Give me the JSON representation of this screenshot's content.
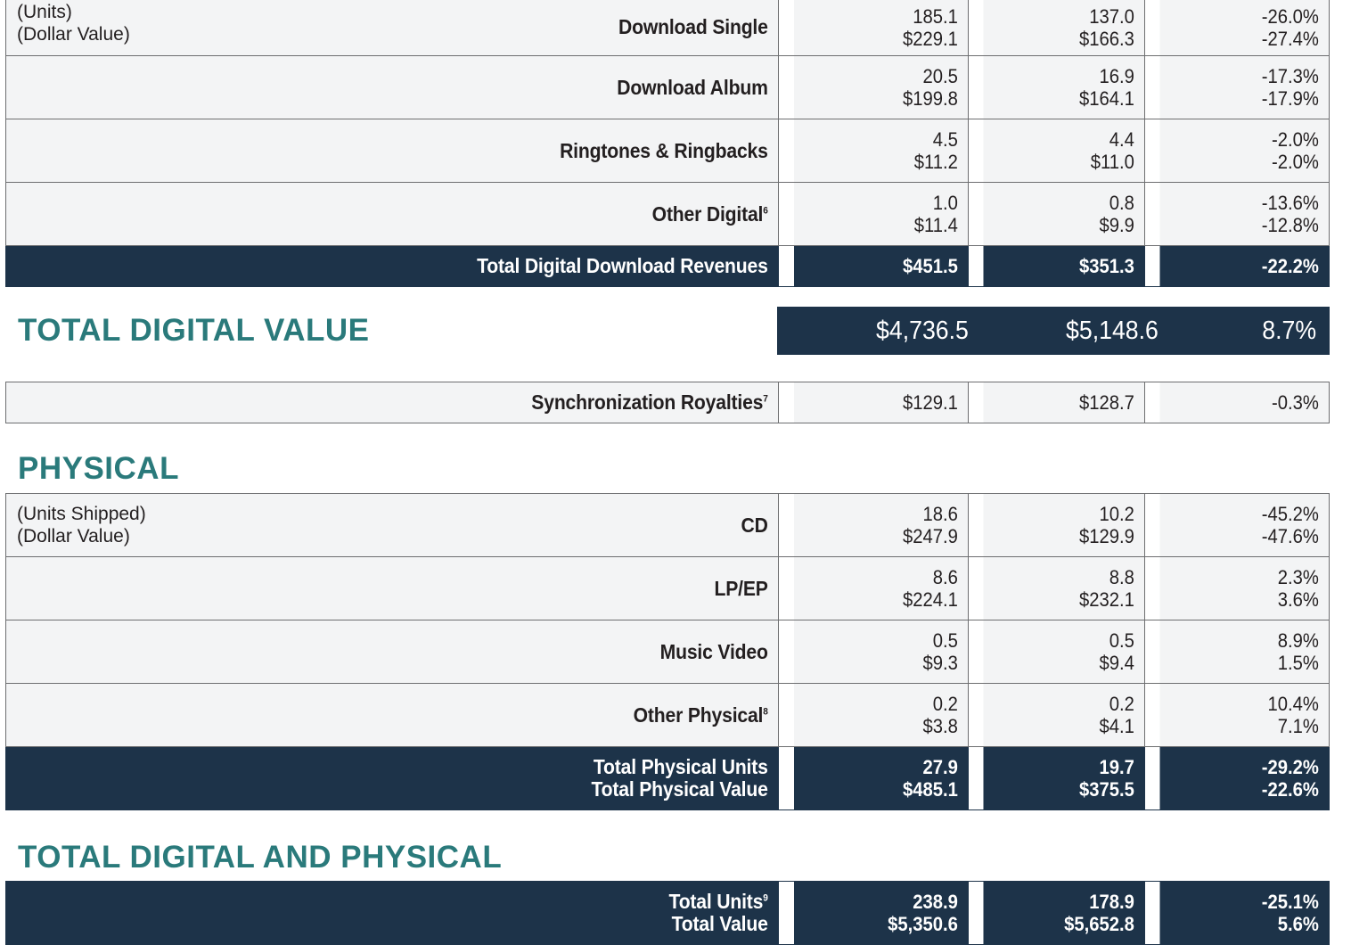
{
  "digital_downloads": {
    "sub_label": [
      "(Units)",
      "(Dollar Value)"
    ],
    "rows": [
      {
        "name": "Download Single",
        "sup": "",
        "y1": [
          "185.1",
          "$229.1"
        ],
        "y2": [
          "137.0",
          "$166.3"
        ],
        "chg": [
          "-26.0%",
          "-27.4%"
        ]
      },
      {
        "name": "Download Album",
        "sup": "",
        "y1": [
          "20.5",
          "$199.8"
        ],
        "y2": [
          "16.9",
          "$164.1"
        ],
        "chg": [
          "-17.3%",
          "-17.9%"
        ]
      },
      {
        "name": "Ringtones & Ringbacks",
        "sup": "",
        "y1": [
          "4.5",
          "$11.2"
        ],
        "y2": [
          "4.4",
          "$11.0"
        ],
        "chg": [
          "-2.0%",
          "-2.0%"
        ]
      },
      {
        "name": "Other Digital",
        "sup": "6",
        "y1": [
          "1.0",
          "$11.4"
        ],
        "y2": [
          "0.8",
          "$9.9"
        ],
        "chg": [
          "-13.6%",
          "-12.8%"
        ]
      }
    ],
    "total": {
      "name": "Total Digital Download Revenues",
      "y1": "$451.5",
      "y2": "$351.3",
      "chg": "-22.2%"
    }
  },
  "total_digital_value": {
    "title": "TOTAL DIGITAL VALUE",
    "y1": "$4,736.5",
    "y2": "$5,148.6",
    "chg": "8.7%"
  },
  "sync": {
    "name": "Synchronization Royalties",
    "sup": "7",
    "y1": "$129.1",
    "y2": "$128.7",
    "chg": "-0.3%"
  },
  "physical": {
    "title": "PHYSICAL",
    "sub_label": [
      "(Units Shipped)",
      "(Dollar Value)"
    ],
    "rows": [
      {
        "name": "CD",
        "sup": "",
        "y1": [
          "18.6",
          "$247.9"
        ],
        "y2": [
          "10.2",
          "$129.9"
        ],
        "chg": [
          "-45.2%",
          "-47.6%"
        ]
      },
      {
        "name": "LP/EP",
        "sup": "",
        "y1": [
          "8.6",
          "$224.1"
        ],
        "y2": [
          "8.8",
          "$232.1"
        ],
        "chg": [
          "2.3%",
          "3.6%"
        ]
      },
      {
        "name": "Music Video",
        "sup": "",
        "y1": [
          "0.5",
          "$9.3"
        ],
        "y2": [
          "0.5",
          "$9.4"
        ],
        "chg": [
          "8.9%",
          "1.5%"
        ]
      },
      {
        "name": "Other Physical",
        "sup": "8",
        "y1": [
          "0.2",
          "$3.8"
        ],
        "y2": [
          "0.2",
          "$4.1"
        ],
        "chg": [
          "10.4%",
          "7.1%"
        ]
      }
    ],
    "total": {
      "name": [
        "Total Physical Units",
        "Total Physical Value"
      ],
      "y1": [
        "27.9",
        "$485.1"
      ],
      "y2": [
        "19.7",
        "$375.5"
      ],
      "chg": [
        "-29.2%",
        "-22.6%"
      ]
    }
  },
  "digital_and_physical": {
    "title": "TOTAL DIGITAL AND PHYSICAL",
    "total": {
      "name": [
        "Total Units",
        "Total Value"
      ],
      "sup": "9",
      "y1": [
        "238.9",
        "$5,350.6"
      ],
      "y2": [
        "178.9",
        "$5,652.8"
      ],
      "chg": [
        "-25.1%",
        "5.6%"
      ]
    }
  }
}
